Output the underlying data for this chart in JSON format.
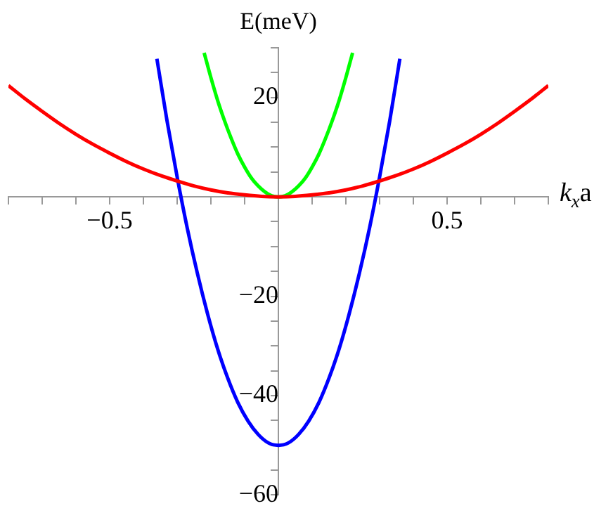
{
  "chart_data": {
    "type": "line",
    "xlabel": "k$_{x}$a",
    "ylabel": "E(meV)",
    "xlim": [
      -0.8,
      0.8
    ],
    "ylim": [
      -60,
      30
    ],
    "xticks": [
      {
        "value": -0.8,
        "label": null
      },
      {
        "value": -0.7,
        "label": null
      },
      {
        "value": -0.6,
        "label": null
      },
      {
        "value": -0.5,
        "label": "−0.5"
      },
      {
        "value": -0.4,
        "label": null
      },
      {
        "value": -0.3,
        "label": null
      },
      {
        "value": -0.2,
        "label": null
      },
      {
        "value": -0.1,
        "label": null
      },
      {
        "value": 0.1,
        "label": null
      },
      {
        "value": 0.2,
        "label": null
      },
      {
        "value": 0.3,
        "label": null
      },
      {
        "value": 0.4,
        "label": null
      },
      {
        "value": 0.5,
        "label": "0.5"
      },
      {
        "value": 0.6,
        "label": null
      },
      {
        "value": 0.7,
        "label": null
      },
      {
        "value": 0.8,
        "label": null
      }
    ],
    "yticks": [
      {
        "value": -60,
        "label": "−60"
      },
      {
        "value": -55,
        "label": null
      },
      {
        "value": -50,
        "label": null
      },
      {
        "value": -45,
        "label": null
      },
      {
        "value": -40,
        "label": "−40"
      },
      {
        "value": -35,
        "label": null
      },
      {
        "value": -30,
        "label": null
      },
      {
        "value": -25,
        "label": null
      },
      {
        "value": -20,
        "label": "−20"
      },
      {
        "value": -15,
        "label": null
      },
      {
        "value": -10,
        "label": null
      },
      {
        "value": -5,
        "label": null
      },
      {
        "value": 5,
        "label": null
      },
      {
        "value": 10,
        "label": null
      },
      {
        "value": 15,
        "label": null
      },
      {
        "value": 20,
        "label": "20"
      },
      {
        "value": 25,
        "label": null
      },
      {
        "value": 30,
        "label": null
      }
    ],
    "grid": false,
    "marker": "none",
    "line_style": "solid",
    "series": [
      {
        "color": "#ff0000",
        "x": [
          -0.8,
          -0.75,
          -0.7,
          -0.65,
          -0.6,
          -0.55,
          -0.5,
          -0.45,
          -0.4,
          -0.35,
          -0.3,
          -0.25,
          -0.2,
          -0.15,
          -0.1,
          -0.05,
          0,
          0.05,
          0.1,
          0.15,
          0.2,
          0.25,
          0.3,
          0.35,
          0.4,
          0.45,
          0.5,
          0.55,
          0.6,
          0.65,
          0.7,
          0.75,
          0.8
        ],
        "values": [
          22.4,
          19.7,
          17.2,
          14.8,
          12.6,
          10.6,
          8.8,
          7.1,
          5.6,
          4.3,
          3.2,
          2.2,
          1.4,
          0.8,
          0.4,
          0.1,
          0,
          0.1,
          0.4,
          0.8,
          1.4,
          2.2,
          3.2,
          4.3,
          5.6,
          7.1,
          8.8,
          10.6,
          12.6,
          14.8,
          17.2,
          19.7,
          22.4
        ]
      },
      {
        "color": "#00ff00",
        "x": [
          -0.22,
          -0.2,
          -0.18,
          -0.16,
          -0.14,
          -0.12,
          -0.1,
          -0.08,
          -0.06,
          -0.04,
          -0.02,
          0,
          0.02,
          0.04,
          0.06,
          0.08,
          0.1,
          0.12,
          0.14,
          0.16,
          0.18,
          0.2,
          0.22
        ],
        "values": [
          29.0,
          24,
          19.4,
          15.4,
          11.8,
          8.6,
          6,
          3.8,
          2.2,
          1.0,
          0.2,
          0,
          0.2,
          1.0,
          2.2,
          3.8,
          6,
          8.6,
          11.8,
          15.4,
          19.4,
          24,
          29.0
        ]
      },
      {
        "color": "#0000ff",
        "x": [
          -0.36,
          -0.33,
          -0.3,
          -0.27,
          -0.24,
          -0.21,
          -0.18,
          -0.15,
          -0.12,
          -0.09,
          -0.06,
          -0.03,
          0,
          0.03,
          0.06,
          0.09,
          0.12,
          0.15,
          0.18,
          0.21,
          0.24,
          0.27,
          0.3,
          0.33,
          0.36
        ],
        "values": [
          27.8,
          15.3,
          4,
          -6.3,
          -15.4,
          -23.5,
          -30.6,
          -36.5,
          -41.4,
          -45.1,
          -47.8,
          -49.5,
          -50,
          -49.5,
          -47.8,
          -45.1,
          -41.4,
          -36.5,
          -30.6,
          -23.5,
          -15.4,
          -6.3,
          4,
          15.3,
          27.8
        ]
      }
    ]
  }
}
